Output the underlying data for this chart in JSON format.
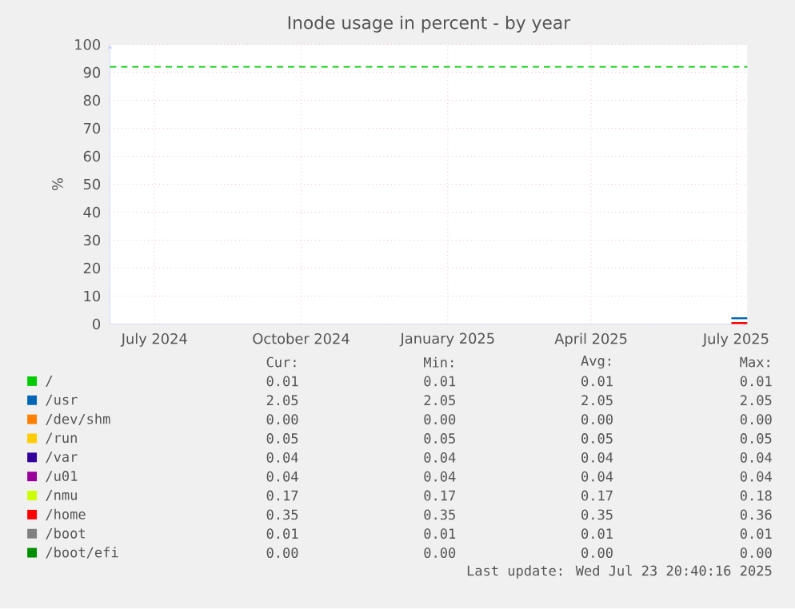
{
  "chart_data": {
    "type": "line",
    "title": "Inode usage in percent - by year",
    "ylabel": "%",
    "xlim": [
      "2024-06-18",
      "2025-07-23"
    ],
    "ylim": [
      0,
      100
    ],
    "xticks": [
      {
        "value": "2024-07-16",
        "label": "July 2024"
      },
      {
        "value": "2024-10-16",
        "label": "October 2024"
      },
      {
        "value": "2025-01-16",
        "label": "January 2025"
      },
      {
        "value": "2025-04-16",
        "label": "April 2025"
      },
      {
        "value": "2025-07-16",
        "label": "July 2025"
      }
    ],
    "yticks": [
      0,
      10,
      20,
      30,
      40,
      50,
      60,
      70,
      80,
      90,
      100
    ],
    "grid": true,
    "legend": "bottom",
    "line_style": "solid",
    "ref_lines": [
      {
        "axis": "y",
        "value": 92,
        "color": "#00cc00",
        "line_style": "dashed"
      }
    ],
    "x": [
      "2025-07-13",
      "2025-07-23"
    ],
    "series": [
      {
        "name": "/",
        "color": "#00cc00",
        "values": [
          null,
          null
        ]
      },
      {
        "name": "/usr",
        "color": "#0066b3",
        "values": [
          2.05,
          2.05
        ]
      },
      {
        "name": "/dev/shm",
        "color": "#ff8000",
        "values": [
          null,
          null
        ]
      },
      {
        "name": "/run",
        "color": "#ffcc00",
        "values": [
          null,
          null
        ]
      },
      {
        "name": "/var",
        "color": "#330099",
        "values": [
          null,
          null
        ]
      },
      {
        "name": "/u01",
        "color": "#990099",
        "values": [
          null,
          null
        ]
      },
      {
        "name": "/nmu",
        "color": "#ccff00",
        "values": [
          null,
          null
        ]
      },
      {
        "name": "/home",
        "color": "#ff0000",
        "values": [
          0.35,
          0.35
        ]
      },
      {
        "name": "/boot",
        "color": "#808080",
        "values": [
          null,
          null
        ]
      },
      {
        "name": "/boot/efi",
        "color": "#008f00",
        "values": [
          null,
          null
        ]
      }
    ],
    "annotations": [
      "Cur:",
      "Min:",
      "Avg:",
      "Max:",
      "0.01",
      "0.01",
      "0.01",
      "0.01",
      "2.05",
      "2.05",
      "2.05",
      "2.05",
      "0.00",
      "0.00",
      "0.00",
      "0.00",
      "0.05",
      "0.05",
      "0.05",
      "0.05",
      "0.04",
      "0.04",
      "0.04",
      "0.04",
      "0.04",
      "0.04",
      "0.04",
      "0.04",
      "0.17",
      "0.17",
      "0.17",
      "0.18",
      "0.35",
      "0.35",
      "0.35",
      "0.36",
      "0.01",
      "0.01",
      "0.01",
      "0.01",
      "0.00",
      "0.00",
      "0.00",
      "0.00",
      "Last update: Wed Jul 23 20:40:16 2025"
    ]
  }
}
